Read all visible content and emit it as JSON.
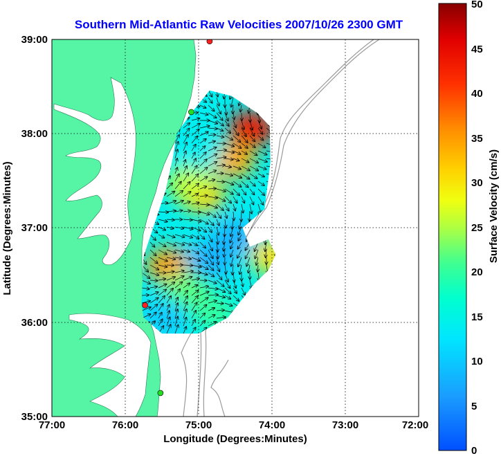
{
  "title": "Southern Mid-Atlantic Raw Velocities 2007/10/26 2300 GMT",
  "x_axis": {
    "label": "Longitude (Degrees:Minutes)",
    "ticks": [
      "77:00",
      "76:00",
      "75:00",
      "74:00",
      "73:00",
      "72:00"
    ]
  },
  "y_axis": {
    "label": "Latitude (Degrees:Minutes)",
    "ticks": [
      "39:00",
      "38:00",
      "37:00",
      "36:00",
      "35:00"
    ]
  },
  "colorbar": {
    "label": "Surface Velocity (cm/s)",
    "ticks": [
      "50",
      "45",
      "40",
      "35",
      "30",
      "25",
      "20",
      "15",
      "10",
      "5",
      "0"
    ],
    "colormap": "jet"
  },
  "colors": {
    "land": "#55f5a5",
    "water": "#ffffff",
    "bathymetry": "#9a9a9a",
    "title": "#0000ff",
    "vectors": "#000000",
    "station_red": "#ff2020",
    "station_green": "#22dd22"
  },
  "chart_data": {
    "type": "heatmap",
    "title": "Southern Mid-Atlantic Raw Velocities 2007/10/26 2300 GMT",
    "xlabel": "Longitude (Degrees:Minutes)",
    "ylabel": "Latitude (Degrees:Minutes)",
    "colorbar_label": "Surface Velocity (cm/s)",
    "xlim_deg_west": [
      77.0,
      72.0
    ],
    "ylim_deg_north": [
      35.0,
      39.0
    ],
    "clim": [
      0,
      50
    ],
    "grid": true,
    "velocity_hotspots": [
      {
        "lon_w": 74.28,
        "lat_n": 38.05,
        "speed": 44
      },
      {
        "lon_w": 74.55,
        "lat_n": 37.72,
        "speed": 34
      },
      {
        "lon_w": 74.95,
        "lat_n": 37.35,
        "speed": 32
      },
      {
        "lon_w": 75.12,
        "lat_n": 37.48,
        "speed": 26
      },
      {
        "lon_w": 75.4,
        "lat_n": 36.6,
        "speed": 35
      },
      {
        "lon_w": 74.0,
        "lat_n": 36.7,
        "speed": 30
      },
      {
        "lon_w": 75.15,
        "lat_n": 36.35,
        "speed": 22
      },
      {
        "lon_w": 74.8,
        "lat_n": 36.1,
        "speed": 20
      },
      {
        "lon_w": 74.5,
        "lat_n": 36.9,
        "speed": 8
      },
      {
        "lon_w": 74.85,
        "lat_n": 36.65,
        "speed": 8
      },
      {
        "lon_w": 75.45,
        "lat_n": 36.05,
        "speed": 10
      },
      {
        "lon_w": 75.0,
        "lat_n": 37.8,
        "speed": 14
      }
    ],
    "background_speed": 14,
    "stations": [
      {
        "lon_w": 74.85,
        "lat_n": 38.98,
        "color": "red"
      },
      {
        "lon_w": 75.1,
        "lat_n": 38.23,
        "color": "green"
      },
      {
        "lon_w": 75.73,
        "lat_n": 36.18,
        "color": "red"
      },
      {
        "lon_w": 75.52,
        "lat_n": 35.25,
        "color": "green"
      }
    ]
  }
}
